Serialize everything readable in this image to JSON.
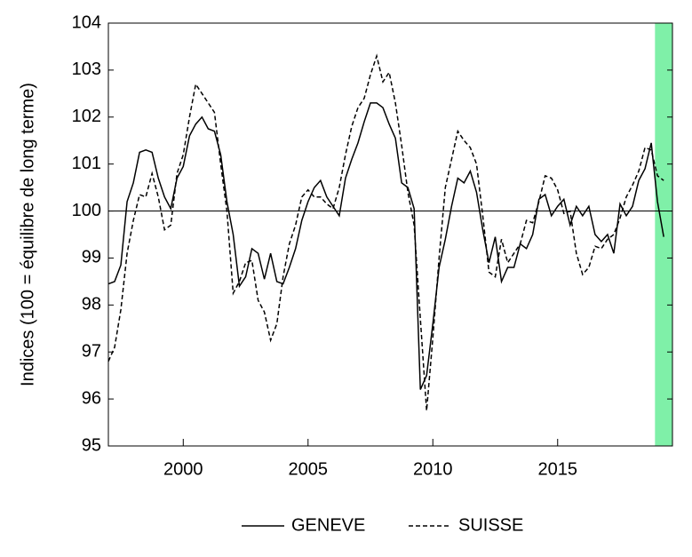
{
  "chart_data": {
    "type": "line",
    "y_label": "Indices (100 = équilibre de long terme)",
    "x": [
      1997,
      1997.25,
      1997.5,
      1997.75,
      1998,
      1998.25,
      1998.5,
      1998.75,
      1999,
      1999.25,
      1999.5,
      1999.75,
      2000,
      2000.25,
      2000.5,
      2000.75,
      2001,
      2001.25,
      2001.5,
      2001.75,
      2002,
      2002.25,
      2002.5,
      2002.75,
      2003,
      2003.25,
      2003.5,
      2003.75,
      2004,
      2004.25,
      2004.5,
      2004.75,
      2005,
      2005.25,
      2005.5,
      2005.75,
      2006,
      2006.25,
      2006.5,
      2006.75,
      2007,
      2007.25,
      2007.5,
      2007.75,
      2008,
      2008.25,
      2008.5,
      2008.75,
      2009,
      2009.25,
      2009.5,
      2009.75,
      2010,
      2010.25,
      2010.5,
      2010.75,
      2011,
      2011.25,
      2011.5,
      2011.75,
      2012,
      2012.25,
      2012.5,
      2012.75,
      2013,
      2013.25,
      2013.5,
      2013.75,
      2014,
      2014.25,
      2014.5,
      2014.75,
      2015,
      2015.25,
      2015.5,
      2015.75,
      2016,
      2016.25,
      2016.5,
      2016.75,
      2017,
      2017.25,
      2017.5,
      2017.75,
      2018,
      2018.25,
      2018.5,
      2018.75,
      2019,
      2019.25
    ],
    "series": [
      {
        "name": "GENEVE",
        "color": "#000000",
        "style": "solid",
        "values": [
          98.45,
          98.5,
          98.85,
          100.2,
          100.6,
          101.25,
          101.3,
          101.25,
          100.7,
          100.3,
          100.05,
          100.7,
          100.95,
          101.6,
          101.85,
          102.0,
          101.75,
          101.7,
          101.2,
          100.2,
          99.5,
          98.4,
          98.6,
          99.2,
          99.1,
          98.55,
          99.1,
          98.5,
          98.45,
          98.8,
          99.2,
          99.8,
          100.2,
          100.5,
          100.65,
          100.3,
          100.1,
          99.9,
          100.7,
          101.1,
          101.45,
          101.9,
          102.3,
          102.3,
          102.2,
          101.85,
          101.55,
          100.6,
          100.5,
          100.05,
          96.2,
          96.5,
          97.6,
          98.8,
          99.4,
          100.1,
          100.7,
          100.6,
          100.85,
          100.4,
          99.6,
          98.9,
          99.45,
          98.5,
          98.8,
          98.8,
          99.3,
          99.2,
          99.5,
          100.25,
          100.35,
          99.9,
          100.1,
          100.25,
          99.7,
          100.1,
          99.9,
          100.1,
          99.5,
          99.35,
          99.5,
          99.1,
          100.15,
          99.9,
          100.1,
          100.65,
          100.9,
          101.45,
          100.2,
          99.45
        ]
      },
      {
        "name": "SUISSE",
        "color": "#000000",
        "style": "dashed",
        "values": [
          96.8,
          97.1,
          97.9,
          99.1,
          99.8,
          100.35,
          100.3,
          100.8,
          100.3,
          99.6,
          99.7,
          100.8,
          101.2,
          102.0,
          102.7,
          102.5,
          102.3,
          102.1,
          101.0,
          100.0,
          98.25,
          98.5,
          98.9,
          98.95,
          98.1,
          97.85,
          97.25,
          97.6,
          98.6,
          99.3,
          99.7,
          100.3,
          100.45,
          100.3,
          100.3,
          100.15,
          100.05,
          100.5,
          101.2,
          101.8,
          102.2,
          102.4,
          102.9,
          103.3,
          102.75,
          102.95,
          102.3,
          101.4,
          100.4,
          99.7,
          97.7,
          95.75,
          97.3,
          99.0,
          100.5,
          101.1,
          101.7,
          101.5,
          101.35,
          101.0,
          99.9,
          98.7,
          98.6,
          99.4,
          98.9,
          99.1,
          99.3,
          99.8,
          99.75,
          100.2,
          100.75,
          100.7,
          100.45,
          99.95,
          100.0,
          99.1,
          98.65,
          98.8,
          99.25,
          99.2,
          99.4,
          99.5,
          99.85,
          100.3,
          100.55,
          100.85,
          101.35,
          101.3,
          100.75,
          100.65
        ]
      }
    ],
    "xlim": [
      1997,
      2019.6
    ],
    "xticks": [
      2000,
      2005,
      2010,
      2015
    ],
    "ylim": [
      95,
      104
    ],
    "yticks": [
      95,
      96,
      97,
      98,
      99,
      100,
      101,
      102,
      103,
      104
    ],
    "reference_line": 100,
    "shaded_x": [
      2018.9,
      2019.6
    ],
    "shade_color": "#7ff0a8",
    "legend": "bottom"
  }
}
